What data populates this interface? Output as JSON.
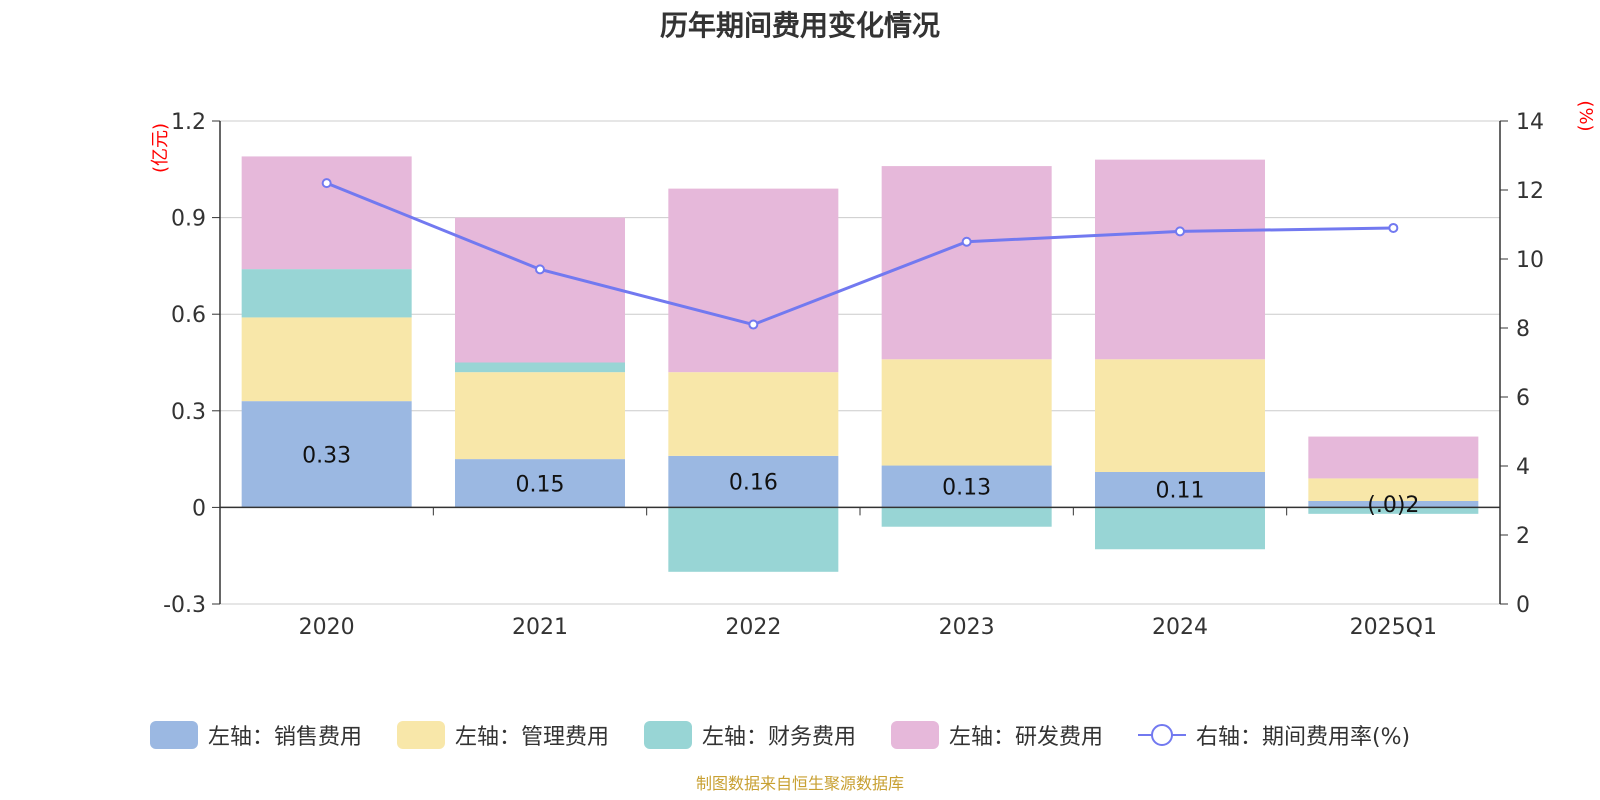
{
  "title": "历年期间费用变化情况",
  "footer": "制图数据来自恒生聚源数据库",
  "colors": {
    "sales": "#9bb8e2",
    "admin": "#f8e7a9",
    "finance": "#98d5d5",
    "rnd": "#e6b8da",
    "rate": "#7279f0",
    "axis_unit": "#ff0000",
    "footer": "#c8a032",
    "grid": "#cccccc",
    "axis": "#333333"
  },
  "chart_data": {
    "type": "bar",
    "stacked": true,
    "categories": [
      "2020",
      "2021",
      "2022",
      "2023",
      "2024",
      "2025Q1"
    ],
    "left_axis": {
      "unit": "(亿元)",
      "ylim": [
        -0.3,
        1.2
      ],
      "ticks": [
        "-0.3",
        "0",
        "0.3",
        "0.6",
        "0.9",
        "1.2"
      ]
    },
    "right_axis": {
      "unit": "(%)",
      "ylim": [
        0,
        14
      ],
      "ticks": [
        "0",
        "2",
        "4",
        "6",
        "8",
        "10",
        "12",
        "14"
      ]
    },
    "grid": true,
    "series": [
      {
        "name": "左轴：销售费用",
        "key": "sales",
        "axis": "left",
        "values": [
          0.33,
          0.15,
          0.16,
          0.13,
          0.11,
          0.02
        ],
        "labels": [
          "0.33",
          "0.15",
          "0.16",
          "0.13",
          "0.11",
          "(.0)2"
        ]
      },
      {
        "name": "左轴：管理费用",
        "key": "admin",
        "axis": "left",
        "values": [
          0.26,
          0.27,
          0.26,
          0.33,
          0.35,
          0.07
        ]
      },
      {
        "name": "左轴：财务费用",
        "key": "finance",
        "axis": "left",
        "values": [
          0.15,
          0.03,
          -0.2,
          -0.06,
          -0.13,
          -0.02
        ]
      },
      {
        "name": "左轴：研发费用",
        "key": "rnd",
        "axis": "left",
        "values": [
          0.35,
          0.45,
          0.57,
          0.6,
          0.62,
          0.13
        ]
      },
      {
        "name": "右轴：期间费用率(%)",
        "key": "rate",
        "axis": "right",
        "type": "line",
        "values": [
          12.2,
          9.7,
          8.1,
          10.5,
          10.8,
          10.9
        ]
      }
    ],
    "legend_position": "bottom"
  }
}
